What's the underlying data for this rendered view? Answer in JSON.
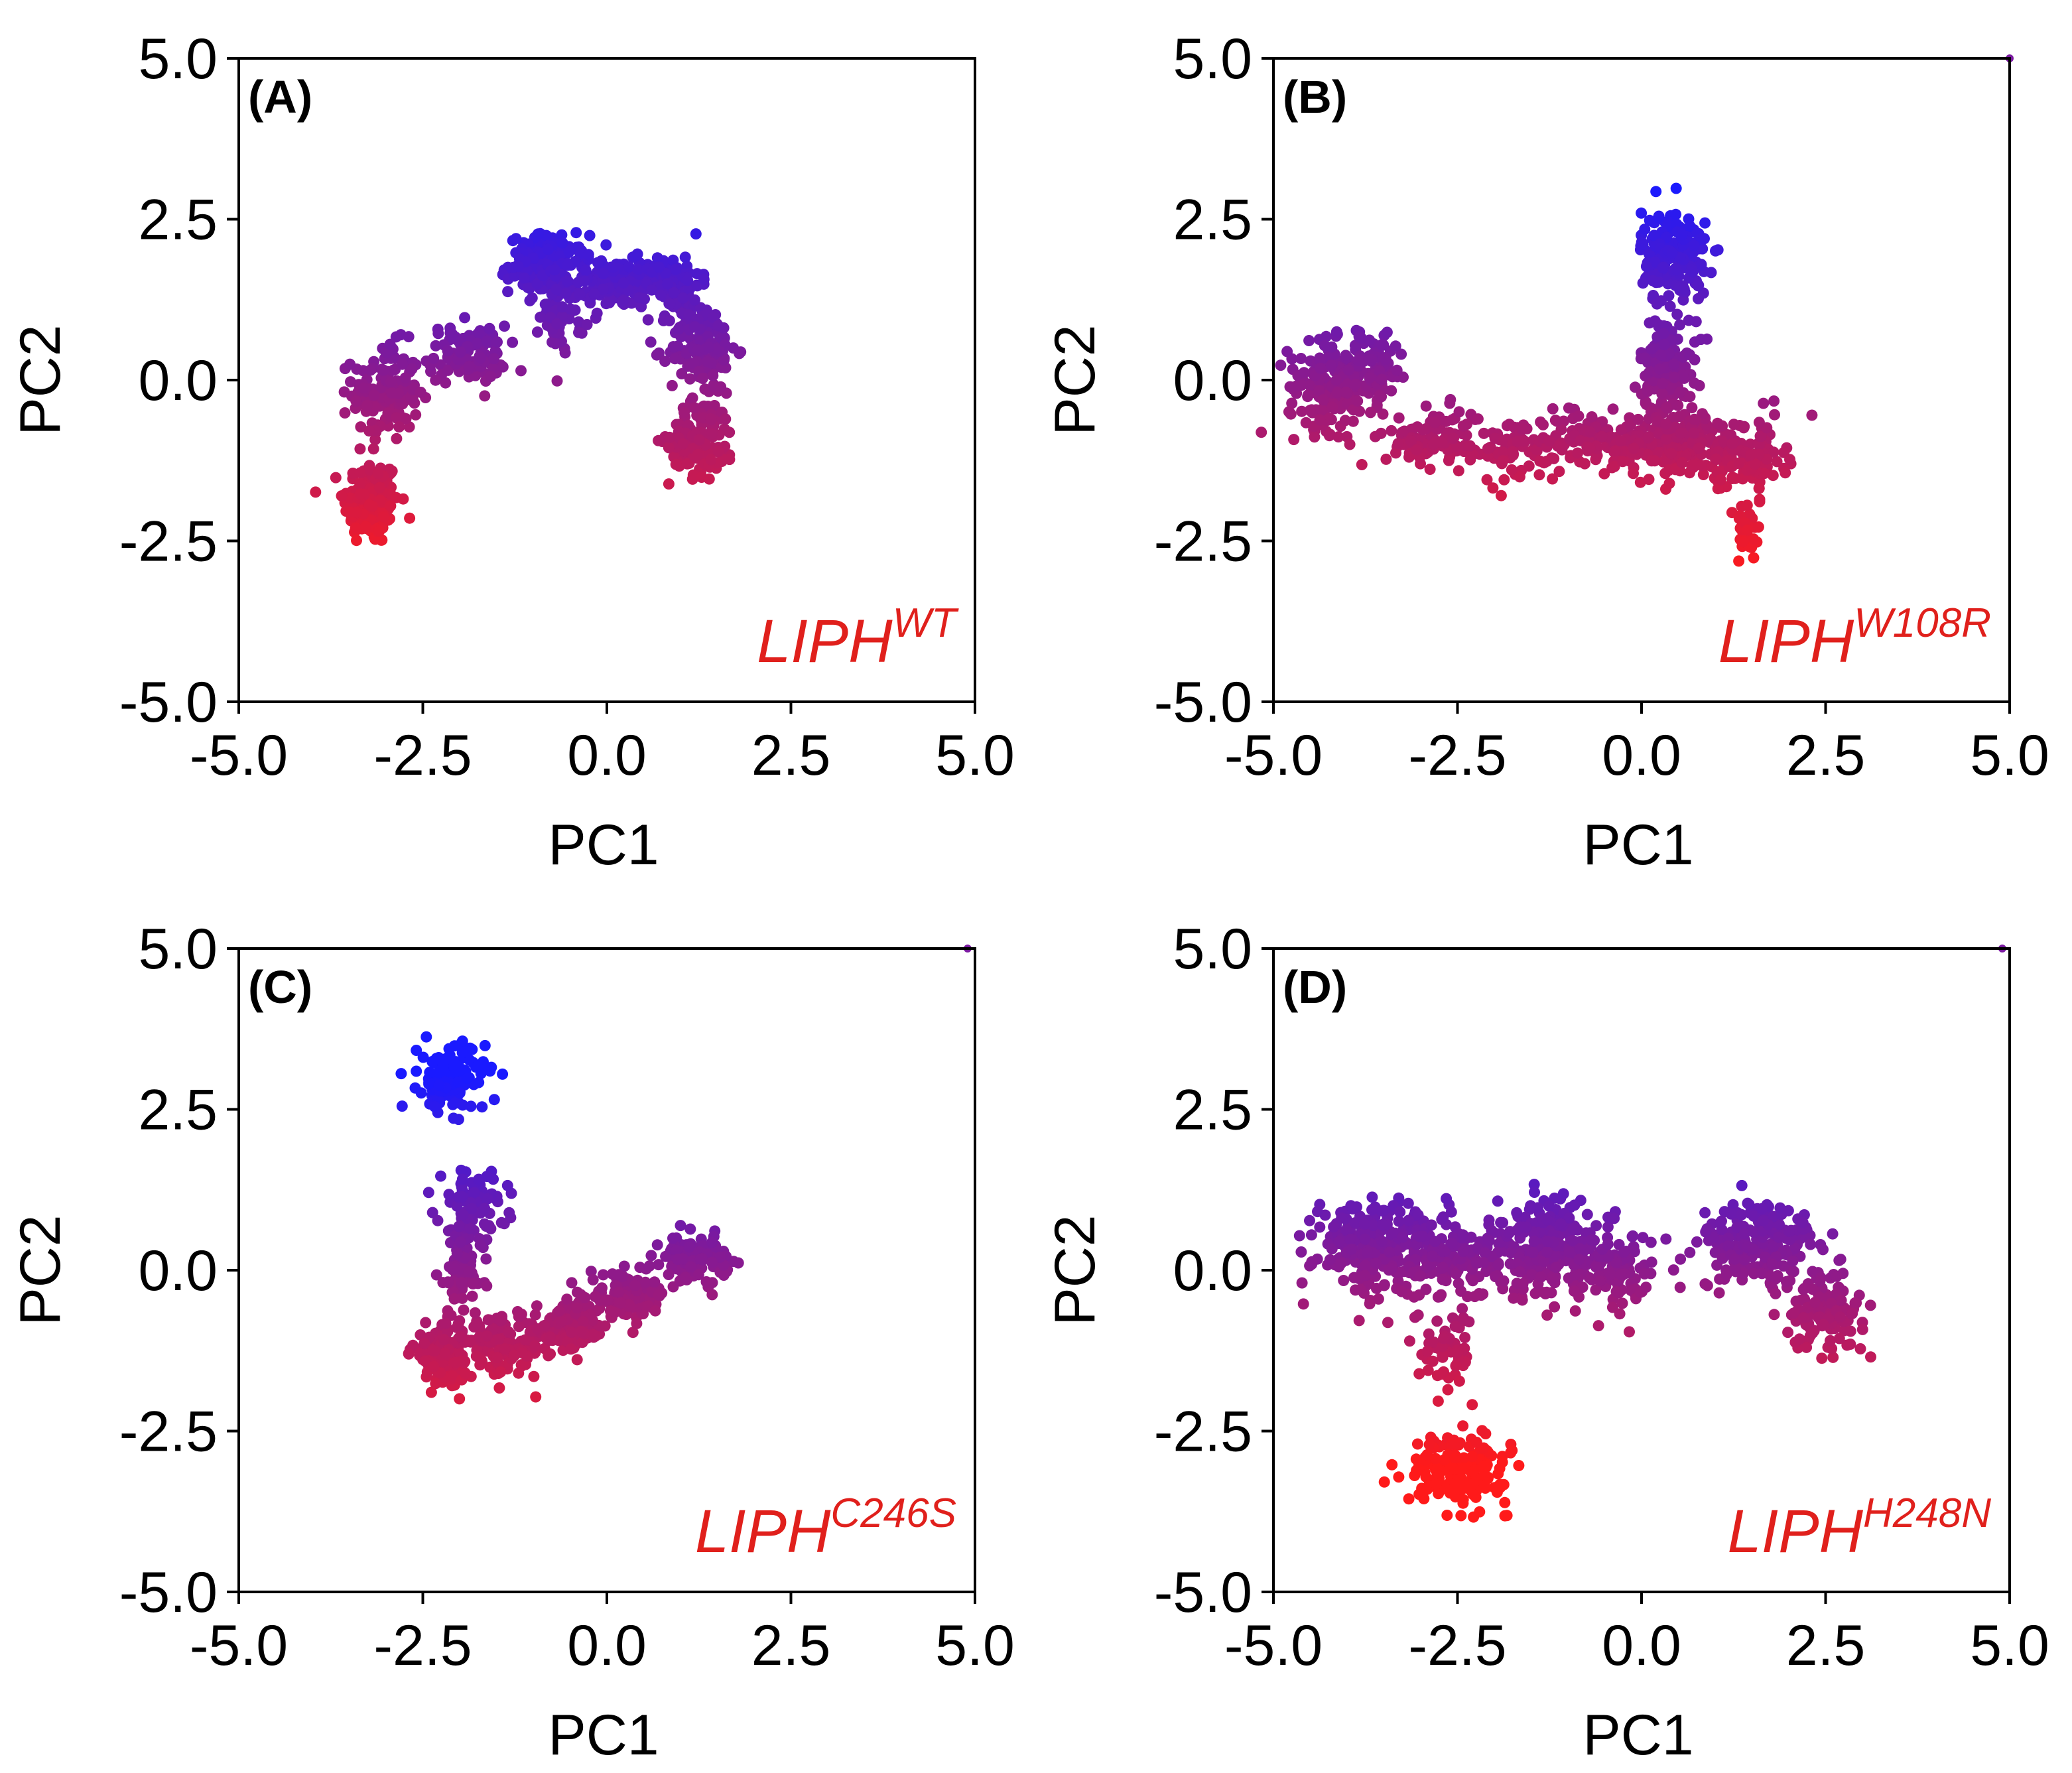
{
  "chart_data": [
    {
      "type": "scatter",
      "panel_label": "(A)",
      "annotation": {
        "base": "LIPH",
        "superscript": "WT",
        "color": "#e0201c"
      },
      "xlabel": "PC1",
      "ylabel": "PC2",
      "xlim": [
        -5.0,
        5.0
      ],
      "ylim": [
        -5.0,
        5.0
      ],
      "xticks": [
        "-5.0",
        "-2.5",
        "0.0",
        "2.5",
        "5.0"
      ],
      "yticks": [
        "-5.0",
        "-2.5",
        "0.0",
        "2.5",
        "5.0"
      ],
      "color_map": {
        "low": "#ff1a1a",
        "high": "#1a1aff",
        "variable": "PC2"
      },
      "clusters": [
        {
          "center": [
            -3.2,
            -1.9
          ],
          "spread": [
            0.25,
            0.45
          ],
          "count": 160
        },
        {
          "center": [
            -3.0,
            -0.2
          ],
          "spread": [
            0.3,
            0.5
          ],
          "count": 150
        },
        {
          "center": [
            -1.9,
            0.4
          ],
          "spread": [
            0.35,
            0.3
          ],
          "count": 110
        },
        {
          "center": [
            -0.8,
            1.8
          ],
          "spread": [
            0.35,
            0.3
          ],
          "count": 160
        },
        {
          "center": [
            -0.6,
            1.0
          ],
          "spread": [
            0.2,
            0.35
          ],
          "count": 50
        },
        {
          "center": [
            0.1,
            1.5
          ],
          "spread": [
            0.45,
            0.25
          ],
          "count": 170
        },
        {
          "center": [
            0.9,
            1.5
          ],
          "spread": [
            0.25,
            0.3
          ],
          "count": 100
        },
        {
          "center": [
            1.3,
            0.5
          ],
          "spread": [
            0.3,
            0.5
          ],
          "count": 150
        },
        {
          "center": [
            1.3,
            -0.9
          ],
          "spread": [
            0.3,
            0.4
          ],
          "count": 130
        }
      ]
    },
    {
      "type": "scatter",
      "panel_label": "(B)",
      "annotation": {
        "base": "LIPH",
        "superscript": "W108R",
        "color": "#e0201c"
      },
      "xlabel": "PC1",
      "ylabel": "PC2",
      "xlim": [
        -5.0,
        5.0
      ],
      "ylim": [
        -5.0,
        5.0
      ],
      "xticks": [
        "-5.0",
        "-2.5",
        "0.0",
        "2.5",
        "5.0"
      ],
      "yticks": [
        "-5.0",
        "-2.5",
        "0.0",
        "2.5",
        "5.0"
      ],
      "color_map": {
        "low": "#ff1a1a",
        "high": "#1a1aff",
        "variable": "PC2"
      },
      "clusters": [
        {
          "center": [
            -4.2,
            -0.1
          ],
          "spread": [
            0.4,
            0.45
          ],
          "count": 200
        },
        {
          "center": [
            -3.6,
            0.2
          ],
          "spread": [
            0.25,
            0.4
          ],
          "count": 70
        },
        {
          "center": [
            -2.8,
            -0.9
          ],
          "spread": [
            0.45,
            0.3
          ],
          "count": 110
        },
        {
          "center": [
            -1.6,
            -1.1
          ],
          "spread": [
            0.35,
            0.35
          ],
          "count": 70
        },
        {
          "center": [
            -0.6,
            -0.9
          ],
          "spread": [
            0.45,
            0.25
          ],
          "count": 110
        },
        {
          "center": [
            0.45,
            1.9
          ],
          "spread": [
            0.3,
            0.5
          ],
          "count": 190
        },
        {
          "center": [
            0.35,
            0.2
          ],
          "spread": [
            0.25,
            0.5
          ],
          "count": 140
        },
        {
          "center": [
            0.6,
            -1.0
          ],
          "spread": [
            0.55,
            0.35
          ],
          "count": 200
        },
        {
          "center": [
            1.5,
            -1.2
          ],
          "spread": [
            0.3,
            0.4
          ],
          "count": 90
        },
        {
          "center": [
            1.4,
            -2.4
          ],
          "spread": [
            0.15,
            0.3
          ],
          "count": 40
        }
      ],
      "extra_points": [
        [
          5.0,
          5.0
        ]
      ]
    },
    {
      "type": "scatter",
      "panel_label": "(C)",
      "annotation": {
        "base": "LIPH",
        "superscript": "C246S",
        "color": "#e0201c"
      },
      "xlabel": "PC1",
      "ylabel": "PC2",
      "xlim": [
        -5.0,
        5.0
      ],
      "ylim": [
        -5.0,
        5.0
      ],
      "xticks": [
        "-5.0",
        "-2.5",
        "0.0",
        "2.5",
        "5.0"
      ],
      "yticks": [
        "-5.0",
        "-2.5",
        "0.0",
        "2.5",
        "5.0"
      ],
      "color_map": {
        "low": "#ff1a1a",
        "high": "#1a1aff",
        "variable": "PC2"
      },
      "clusters": [
        {
          "center": [
            -2.1,
            3.0
          ],
          "spread": [
            0.3,
            0.35
          ],
          "count": 140
        },
        {
          "center": [
            -1.8,
            1.0
          ],
          "spread": [
            0.3,
            0.35
          ],
          "count": 90
        },
        {
          "center": [
            -2.0,
            0.0
          ],
          "spread": [
            0.2,
            0.45
          ],
          "count": 80
        },
        {
          "center": [
            -2.2,
            -1.3
          ],
          "spread": [
            0.3,
            0.3
          ],
          "count": 150
        },
        {
          "center": [
            -1.4,
            -1.2
          ],
          "spread": [
            0.35,
            0.3
          ],
          "count": 110
        },
        {
          "center": [
            -0.5,
            -0.9
          ],
          "spread": [
            0.35,
            0.25
          ],
          "count": 120
        },
        {
          "center": [
            0.3,
            -0.4
          ],
          "spread": [
            0.35,
            0.22
          ],
          "count": 120
        },
        {
          "center": [
            1.2,
            0.2
          ],
          "spread": [
            0.3,
            0.22
          ],
          "count": 110
        }
      ],
      "extra_points": [
        [
          4.9,
          5.0
        ]
      ]
    },
    {
      "type": "scatter",
      "panel_label": "(D)",
      "annotation": {
        "base": "LIPH",
        "superscript": "H248N",
        "color": "#e0201c"
      },
      "xlabel": "PC1",
      "ylabel": "PC2",
      "xlim": [
        -5.0,
        5.0
      ],
      "ylim": [
        -5.0,
        5.0
      ],
      "xticks": [
        "-5.0",
        "-2.5",
        "0.0",
        "2.5",
        "5.0"
      ],
      "yticks": [
        "-5.0",
        "-2.5",
        "0.0",
        "2.5",
        "5.0"
      ],
      "color_map": {
        "low": "#ff1a1a",
        "high": "#1a1aff",
        "variable": "PC2"
      },
      "clusters": [
        {
          "center": [
            -3.7,
            0.4
          ],
          "spread": [
            0.5,
            0.5
          ],
          "count": 220
        },
        {
          "center": [
            -2.6,
            0.2
          ],
          "spread": [
            0.45,
            0.45
          ],
          "count": 150
        },
        {
          "center": [
            -1.2,
            0.3
          ],
          "spread": [
            0.55,
            0.5
          ],
          "count": 240
        },
        {
          "center": [
            -0.3,
            -0.1
          ],
          "spread": [
            0.3,
            0.4
          ],
          "count": 70
        },
        {
          "center": [
            1.6,
            0.4
          ],
          "spread": [
            0.55,
            0.45
          ],
          "count": 200
        },
        {
          "center": [
            2.5,
            -0.6
          ],
          "spread": [
            0.35,
            0.4
          ],
          "count": 120
        },
        {
          "center": [
            -2.6,
            -1.2
          ],
          "spread": [
            0.25,
            0.4
          ],
          "count": 60
        },
        {
          "center": [
            -2.5,
            -3.1
          ],
          "spread": [
            0.45,
            0.35
          ],
          "count": 180
        }
      ],
      "extra_points": [
        [
          4.9,
          5.0
        ]
      ]
    }
  ]
}
